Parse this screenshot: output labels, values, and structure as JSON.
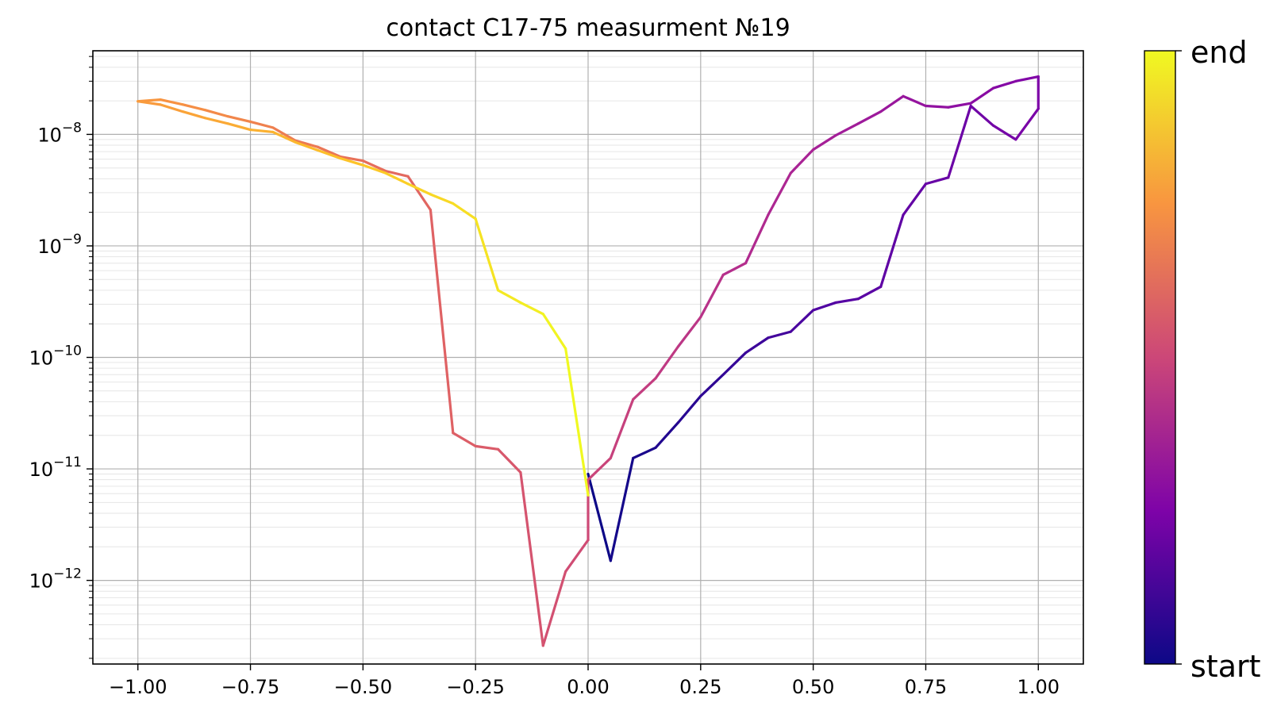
{
  "chart_data": {
    "type": "line",
    "title": "contact C17-75 measurment №19",
    "xlabel": "",
    "ylabel": "",
    "xlim": [
      -1.1,
      1.1
    ],
    "yscale": "log",
    "ylim_exponents": [
      -12.75,
      -7.25
    ],
    "grid": "on (major and minor)",
    "x_ticks": [
      {
        "value": -1.0,
        "label": "−1.00"
      },
      {
        "value": -0.75,
        "label": "−0.75"
      },
      {
        "value": -0.5,
        "label": "−0.50"
      },
      {
        "value": -0.25,
        "label": "−0.25"
      },
      {
        "value": 0.0,
        "label": "0.00"
      },
      {
        "value": 0.25,
        "label": "0.25"
      },
      {
        "value": 0.5,
        "label": "0.50"
      },
      {
        "value": 0.75,
        "label": "0.75"
      },
      {
        "value": 1.0,
        "label": "1.00"
      }
    ],
    "y_ticks": [
      {
        "exponent": -8,
        "base": "10",
        "sup": "−8"
      },
      {
        "exponent": -9,
        "base": "10",
        "sup": "−9"
      },
      {
        "exponent": -10,
        "base": "10",
        "sup": "−10"
      },
      {
        "exponent": -11,
        "base": "10",
        "sup": "−11"
      },
      {
        "exponent": -12,
        "base": "10",
        "sup": "−12"
      }
    ],
    "colormap": "plasma",
    "colorbar": {
      "start_label": "start",
      "end_label": "end"
    },
    "series": [
      {
        "x": [
          0.0,
          0.05,
          0.1,
          0.15,
          0.2,
          0.25,
          0.3,
          0.35,
          0.4,
          0.45,
          0.5,
          0.55,
          0.6,
          0.65,
          0.7,
          0.75,
          0.8,
          0.85,
          0.9,
          0.95,
          1.0,
          1.0,
          0.95,
          0.9,
          0.85,
          0.8,
          0.75,
          0.7,
          0.65,
          0.6,
          0.55,
          0.5,
          0.45,
          0.4,
          0.35,
          0.3,
          0.25,
          0.2,
          0.15,
          0.1,
          0.05,
          0.0,
          0.0,
          -0.05,
          -0.1,
          -0.15,
          -0.2,
          -0.25,
          -0.3,
          -0.35,
          -0.4,
          -0.45,
          -0.5,
          -0.55,
          -0.6,
          -0.65,
          -0.7,
          -0.75,
          -0.8,
          -0.85,
          -0.9,
          -0.95,
          -1.0,
          -0.95,
          -0.9,
          -0.85,
          -0.8,
          -0.75,
          -0.7,
          -0.65,
          -0.6,
          -0.55,
          -0.5,
          -0.45,
          -0.4,
          -0.35,
          -0.3,
          -0.25,
          -0.2,
          -0.15,
          -0.1,
          -0.05,
          0.0
        ],
        "y": [
          9e-12,
          1.5e-12,
          1.25e-11,
          1.55e-11,
          2.6e-11,
          4.5e-11,
          7e-11,
          1.1e-10,
          1.5e-10,
          1.7e-10,
          2.65e-10,
          3.1e-10,
          3.35e-10,
          4.3e-10,
          1.9e-09,
          3.6e-09,
          4.1e-09,
          1.8e-08,
          1.2e-08,
          9e-09,
          1.7e-08,
          3.3e-08,
          3e-08,
          2.6e-08,
          1.9e-08,
          1.75e-08,
          1.8e-08,
          2.2e-08,
          1.6e-08,
          1.25e-08,
          9.8e-09,
          7.3e-09,
          4.5e-09,
          1.9e-09,
          7e-10,
          5.5e-10,
          2.3e-10,
          1.25e-10,
          6.5e-11,
          4.2e-11,
          1.25e-11,
          8e-12,
          2.3e-12,
          1.2e-12,
          2.6e-13,
          9.3e-12,
          1.5e-11,
          1.6e-11,
          2.1e-11,
          2.1e-09,
          4.2e-09,
          4.7e-09,
          5.8e-09,
          6.3e-09,
          7.7e-09,
          8.8e-09,
          1.15e-08,
          1.3e-08,
          1.45e-08,
          1.65e-08,
          1.85e-08,
          2.05e-08,
          1.98e-08,
          1.85e-08,
          1.6e-08,
          1.4e-08,
          1.25e-08,
          1.1e-08,
          1.05e-08,
          8.5e-09,
          7.2e-09,
          6.1e-09,
          5.3e-09,
          4.5e-09,
          3.6e-09,
          2.9e-09,
          2.4e-09,
          1.75e-09,
          4e-10,
          3.1e-10,
          2.45e-10,
          1.2e-10,
          5.8e-12
        ]
      }
    ]
  }
}
